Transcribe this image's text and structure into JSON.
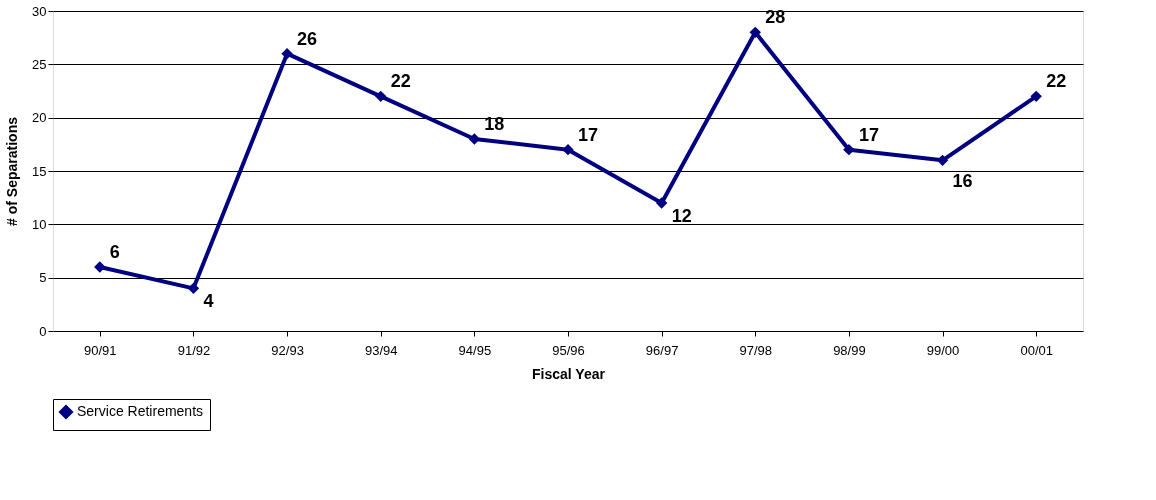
{
  "chart_data": {
    "type": "line",
    "xlabel": "Fiscal Year",
    "ylabel": "# of Separations",
    "categories": [
      "90/91",
      "91/92",
      "92/93",
      "93/94",
      "94/95",
      "95/96",
      "96/97",
      "97/98",
      "98/99",
      "99/00",
      "00/01"
    ],
    "series": [
      {
        "name": "Service Retirements",
        "color": "#000080",
        "values": [
          6,
          4,
          26,
          22,
          18,
          17,
          12,
          28,
          17,
          16,
          22
        ]
      }
    ],
    "ylim": [
      0,
      30
    ],
    "yticks": [
      0,
      5,
      10,
      15,
      20,
      25,
      30
    ],
    "grid": "y",
    "legend": "bottom",
    "marker": "diamond",
    "line_style": "solid",
    "data_labels": true
  }
}
